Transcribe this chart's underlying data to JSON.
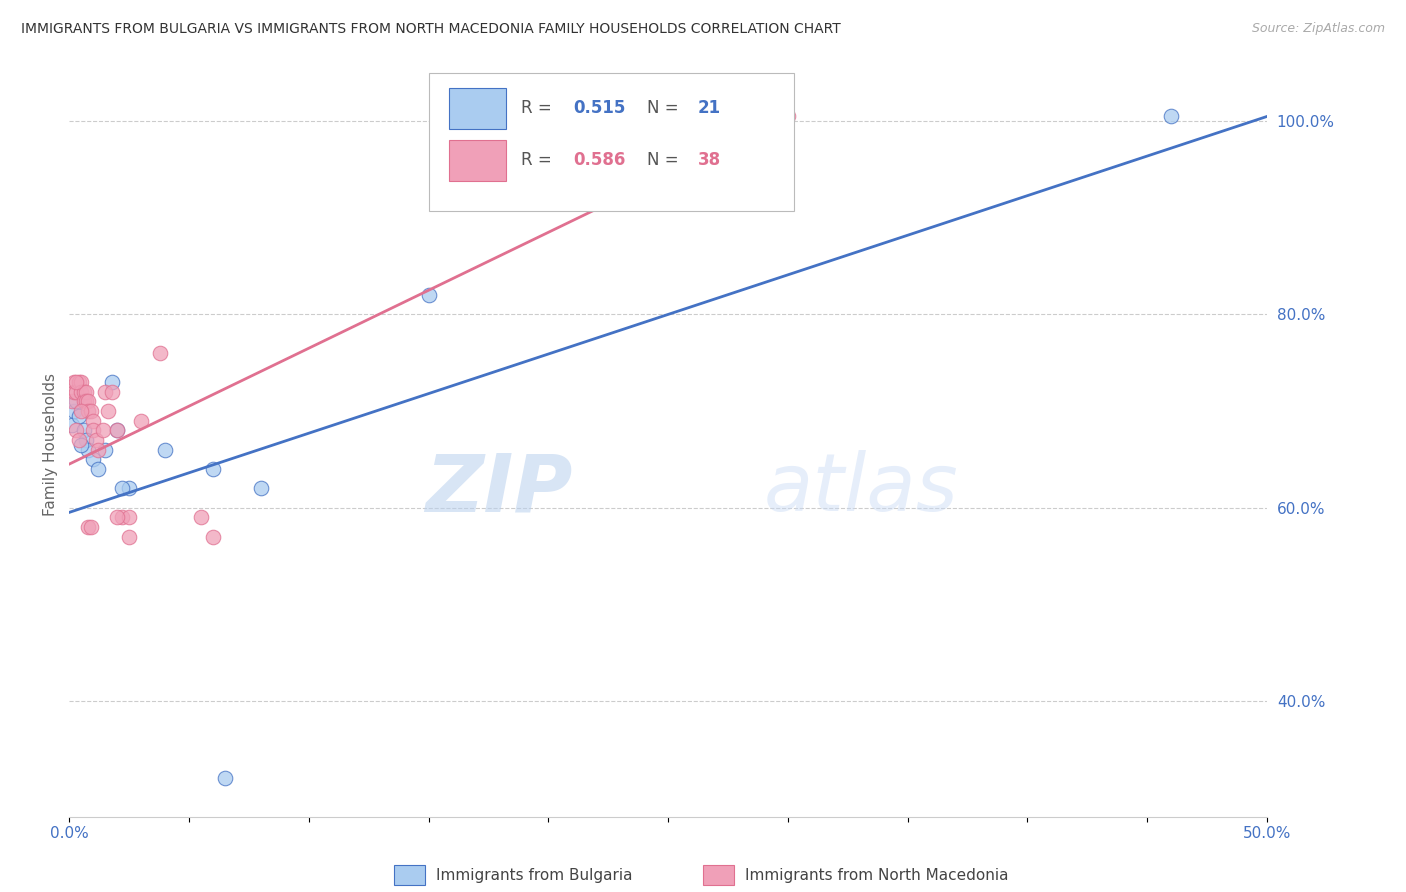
{
  "title": "IMMIGRANTS FROM BULGARIA VS IMMIGRANTS FROM NORTH MACEDONIA FAMILY HOUSEHOLDS CORRELATION CHART",
  "source": "Source: ZipAtlas.com",
  "ylabel": "Family Households",
  "xlim": [
    0,
    0.5
  ],
  "ylim": [
    0.28,
    1.05
  ],
  "yticks": [
    0.4,
    0.6,
    0.8,
    1.0
  ],
  "ytick_labels": [
    "40.0%",
    "60.0%",
    "80.0%",
    "100.0%"
  ],
  "xticks": [
    0.0,
    0.05,
    0.1,
    0.15,
    0.2,
    0.25,
    0.3,
    0.35,
    0.4,
    0.45,
    0.5
  ],
  "xtick_labels": [
    "0.0%",
    "",
    "",
    "",
    "",
    "",
    "",
    "",
    "",
    "",
    "50.0%"
  ],
  "bulgaria_color": "#aaccf0",
  "north_macedonia_color": "#f0a0b8",
  "bulgaria_line_color": "#4472C4",
  "north_macedonia_line_color": "#E07090",
  "R_bulgaria": "0.515",
  "N_bulgaria": "21",
  "R_north_macedonia": "0.586",
  "N_north_macedonia": "38",
  "legend_label_bulgaria": "Immigrants from Bulgaria",
  "legend_label_north_macedonia": "Immigrants from North Macedonia",
  "bg_trendline_x0": 0.0,
  "bg_trendline_y0": 0.595,
  "bg_trendline_x1": 0.5,
  "bg_trendline_y1": 1.005,
  "nm_trendline_x0": 0.0,
  "nm_trendline_y0": 0.645,
  "nm_trendline_x1": 0.3,
  "nm_trendline_y1": 1.005,
  "bulgaria_x": [
    0.001,
    0.002,
    0.003,
    0.004,
    0.006,
    0.007,
    0.008,
    0.01,
    0.012,
    0.015,
    0.018,
    0.02,
    0.025,
    0.04,
    0.06,
    0.08,
    0.15,
    0.46,
    0.065,
    0.005,
    0.022
  ],
  "bulgaria_y": [
    0.685,
    0.7,
    0.71,
    0.695,
    0.68,
    0.67,
    0.66,
    0.65,
    0.64,
    0.66,
    0.73,
    0.68,
    0.62,
    0.66,
    0.64,
    0.62,
    0.82,
    1.005,
    0.32,
    0.665,
    0.62
  ],
  "north_macedonia_x": [
    0.001,
    0.002,
    0.002,
    0.003,
    0.004,
    0.005,
    0.005,
    0.006,
    0.006,
    0.007,
    0.007,
    0.008,
    0.008,
    0.009,
    0.01,
    0.01,
    0.011,
    0.012,
    0.014,
    0.015,
    0.016,
    0.018,
    0.02,
    0.022,
    0.025,
    0.03,
    0.038,
    0.06,
    0.005,
    0.003,
    0.003,
    0.004,
    0.02,
    0.025,
    0.055,
    0.008,
    0.009,
    0.3
  ],
  "north_macedonia_y": [
    0.71,
    0.73,
    0.72,
    0.72,
    0.73,
    0.73,
    0.72,
    0.72,
    0.71,
    0.72,
    0.71,
    0.71,
    0.7,
    0.7,
    0.69,
    0.68,
    0.67,
    0.66,
    0.68,
    0.72,
    0.7,
    0.72,
    0.68,
    0.59,
    0.59,
    0.69,
    0.76,
    0.57,
    0.7,
    0.73,
    0.68,
    0.67,
    0.59,
    0.57,
    0.59,
    0.58,
    0.58,
    1.005
  ]
}
